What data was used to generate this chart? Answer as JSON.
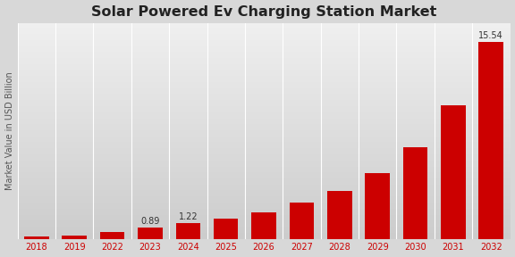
{
  "title": "Solar Powered Ev Charging Station Market",
  "ylabel": "Market Value in USD Billion",
  "categories": [
    "2018",
    "2019",
    "2022",
    "2023",
    "2024",
    "2025",
    "2026",
    "2027",
    "2028",
    "2029",
    "2030",
    "2031",
    "2032"
  ],
  "values": [
    0.18,
    0.22,
    0.5,
    0.89,
    1.22,
    1.58,
    2.05,
    2.85,
    3.8,
    5.2,
    7.2,
    10.5,
    15.54
  ],
  "bar_color": "#cc0000",
  "labeled_bars": {
    "2023": "0.89",
    "2024": "1.22",
    "2032": "15.54"
  },
  "background_top": "#f0f0f0",
  "background_bottom": "#d0d0d0",
  "ylim": [
    0,
    17
  ],
  "grid_color": "#ffffff",
  "title_fontsize": 11.5,
  "label_fontsize": 7,
  "tick_fontsize": 7,
  "bar_width": 0.65,
  "bottom_strip_color": "#cc0000",
  "tick_label_color": "#cc0000",
  "ylabel_color": "#555555"
}
